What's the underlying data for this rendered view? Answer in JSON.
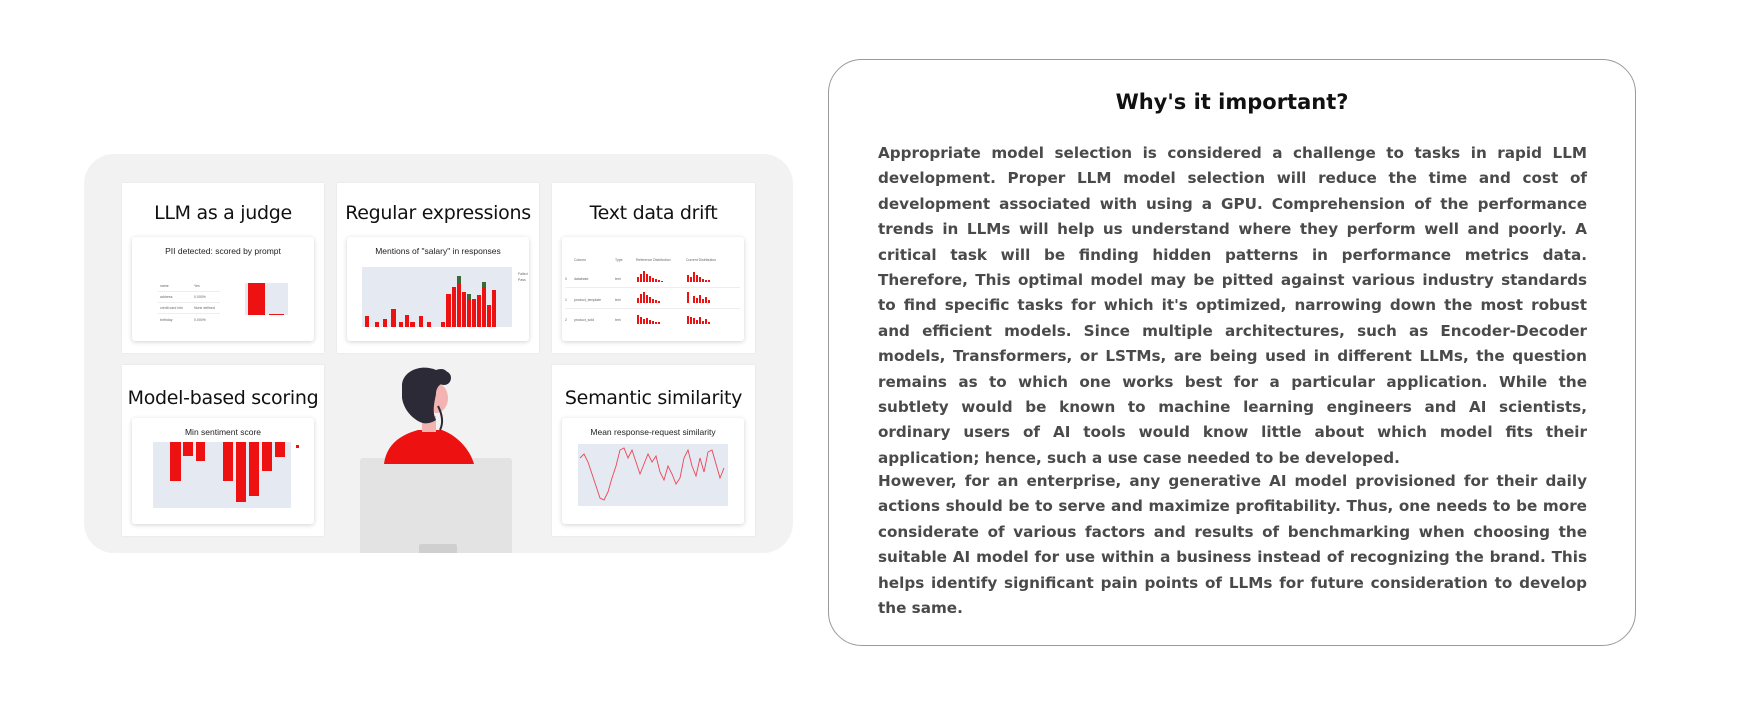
{
  "illustration": {
    "cards": {
      "judge": {
        "title": "LLM as a judge",
        "chart_title": "PII detected: scored by prompt",
        "table_rows": [
          {
            "label": "name",
            "value": "Yes"
          },
          {
            "label": "address",
            "value": "0.000%"
          },
          {
            "label": "credit card info",
            "value": "None defined"
          },
          {
            "label": "birthday",
            "value": "0.000%"
          }
        ]
      },
      "regex": {
        "title": "Regular expressions",
        "chart_title": "Mentions of \"salary\" in responses",
        "legend": [
          "Failed",
          "Pass"
        ]
      },
      "drift": {
        "title": "Text data drift",
        "headers": [
          "Column",
          "Type",
          "Reference Distribution",
          "Current Distribution"
        ],
        "rows": [
          {
            "index": "0",
            "column": "database",
            "type": "text"
          },
          {
            "index": "1",
            "column": "product_template",
            "type": "text"
          },
          {
            "index": "2",
            "column": "product_sold",
            "type": "text"
          }
        ]
      },
      "model": {
        "title": "Model-based scoring",
        "chart_title": "Min sentiment score"
      },
      "semantic": {
        "title": "Semantic similarity",
        "chart_title": "Mean response-request similarity"
      }
    },
    "colors": {
      "bar": "#ee1111",
      "bar_pass": "#3a6b35",
      "plot_bg": "#e4e9f2",
      "panel_bg": "#f2f2f2"
    }
  },
  "info": {
    "title": "Why's it important?",
    "paragraph1": "Appropriate model selection is considered a challenge to tasks in rapid LLM development. Proper LLM model selection will reduce the time and cost of development associated with using a GPU. Comprehension of the performance trends in LLMs will help us understand where they perform well and poorly. A critical task will be finding hidden patterns in performance metrics data. Therefore, This optimal model may be pitted against various industry standards to find specific tasks for which it's optimized, narrowing down the most robust and efficient models. Since multiple architectures, such as Encoder-Decoder models, Transformers, or LSTMs, are being used in different LLMs, the question remains as to which one works best for a particular application. While the subtlety would be known to machine learning engineers and AI scientists, ordinary users of AI tools would know little about which model fits their application; hence, such a use case needed to be developed.",
    "paragraph2": "However, for an enterprise, any generative AI model provisioned for their daily actions should be to serve and maximize profitability. Thus, one needs to be more considerate of various factors and results of benchmarking when choosing the suitable AI model for use within a business instead of recognizing the brand. This helps identify significant pain points of LLMs for future consideration to develop the same."
  }
}
